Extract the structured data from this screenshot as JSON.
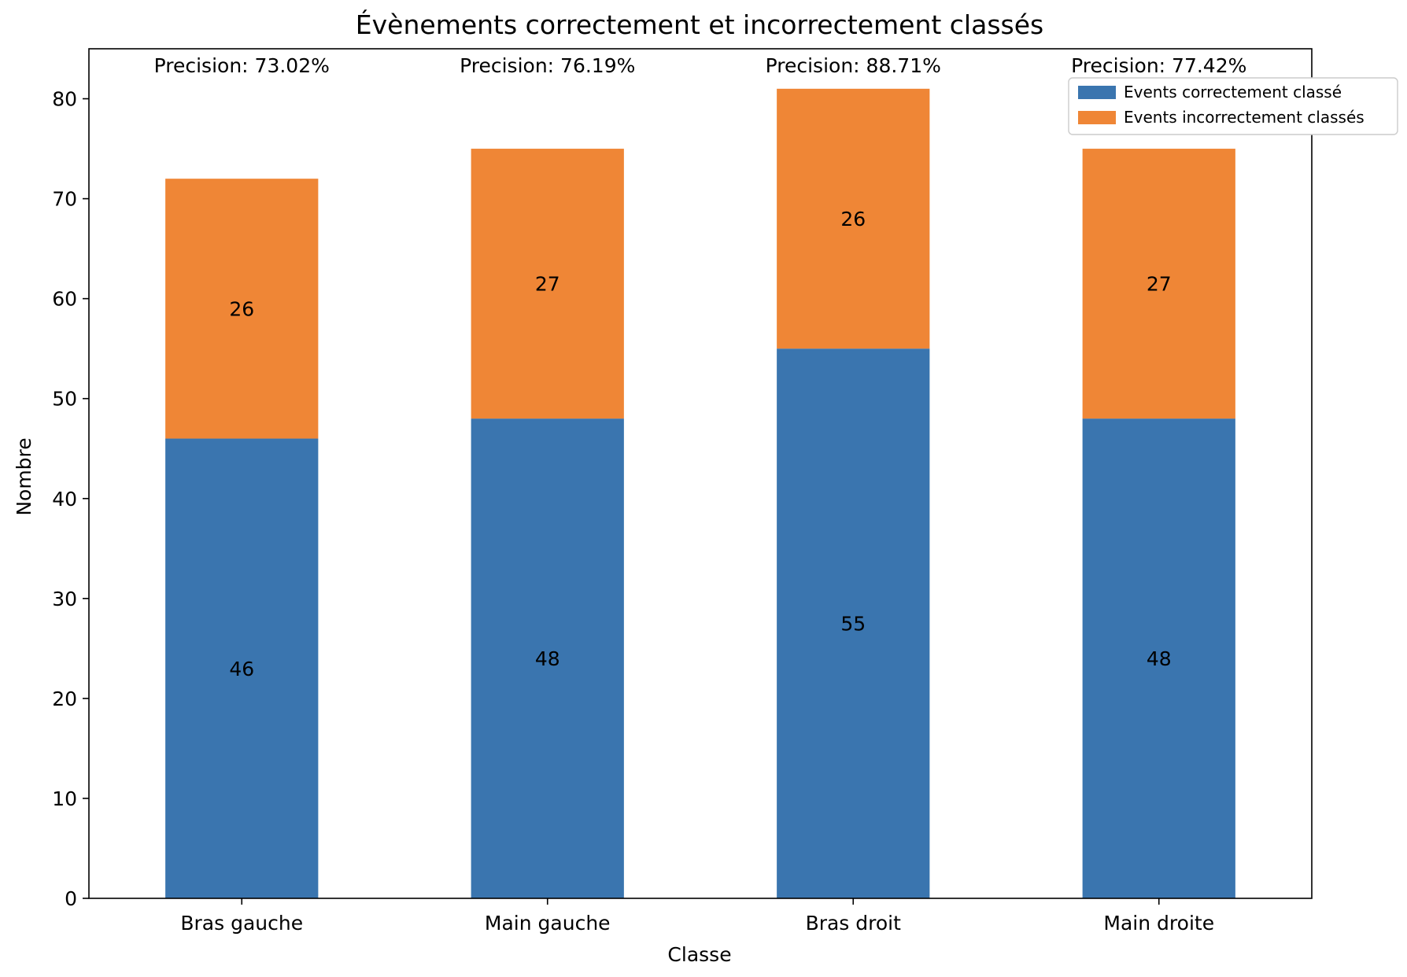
{
  "chart_data": {
    "type": "bar",
    "stacked": true,
    "title": "Évènements correctement et incorrectement classés",
    "xlabel": "Classe",
    "ylabel": "Nombre",
    "categories": [
      "Bras gauche",
      "Main gauche",
      "Bras droit",
      "Main droite"
    ],
    "series": [
      {
        "name": "Events correctement classé",
        "values": [
          46,
          48,
          55,
          48
        ],
        "color": "#3a75af"
      },
      {
        "name": "Events incorrectement classés",
        "values": [
          26,
          27,
          26,
          27
        ],
        "color": "#ef8636"
      }
    ],
    "bar_labels": [
      [
        "46",
        "48",
        "55",
        "48"
      ],
      [
        "26",
        "27",
        "26",
        "27"
      ]
    ],
    "annotations": [
      "Precision: 73.02%",
      "Precision: 76.19%",
      "Precision: 88.71%",
      "Precision: 77.42%"
    ],
    "ylim": [
      0,
      85
    ],
    "yticks": [
      0,
      10,
      20,
      30,
      40,
      50,
      60,
      70,
      80
    ],
    "ytick_labels": [
      "0",
      "10",
      "20",
      "30",
      "40",
      "50",
      "60",
      "70",
      "80"
    ],
    "grid": false,
    "legend_position": "top-right"
  }
}
